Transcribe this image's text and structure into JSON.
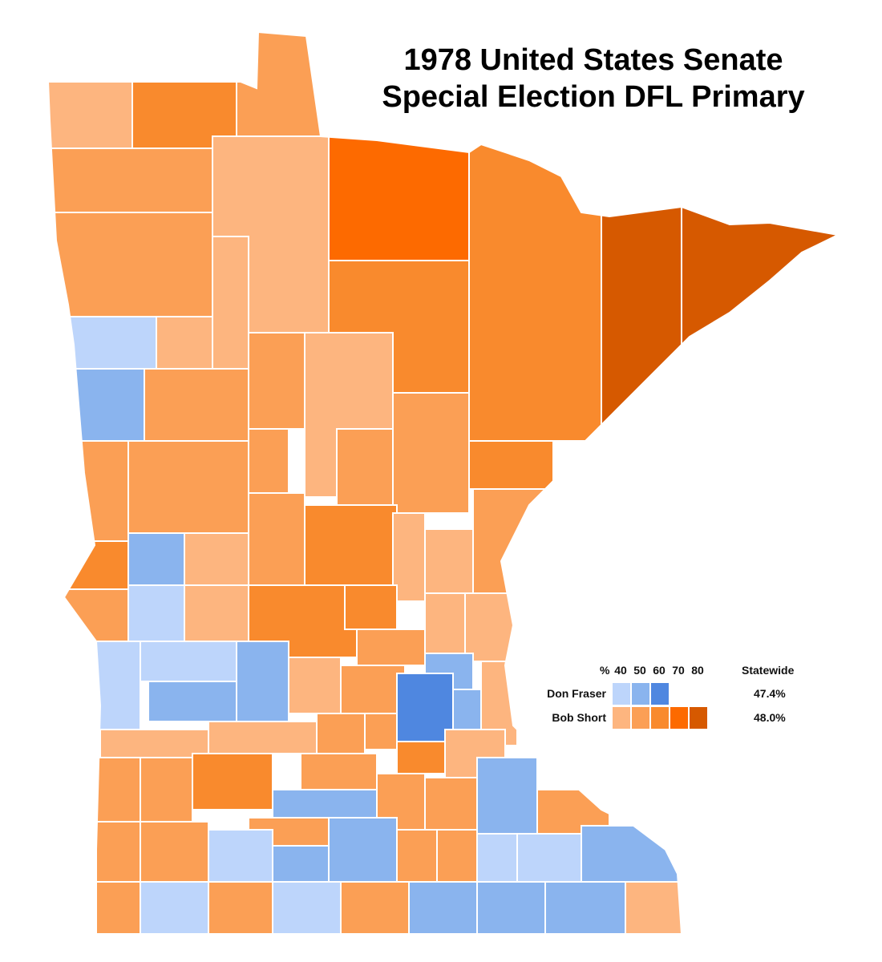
{
  "title": {
    "line1": "1978 United States Senate",
    "line2": "Special Election DFL Primary"
  },
  "legend": {
    "percent_label": "%",
    "ticks": [
      "40",
      "50",
      "60",
      "70",
      "80"
    ],
    "statewide_label": "Statewide",
    "candidates": [
      {
        "name": "Don Fraser",
        "statewide": "47.4%",
        "colors": [
          "#bdd5fb",
          "#8ab4ee",
          "#4f87e0"
        ]
      },
      {
        "name": "Bob Short",
        "statewide": "48.0%",
        "colors": [
          "#fdb57f",
          "#fb9f55",
          "#f98a2d",
          "#fd6a00",
          "#d65900"
        ]
      }
    ]
  },
  "colors": {
    "border": "#ffffff",
    "background": "#ffffff"
  }
}
